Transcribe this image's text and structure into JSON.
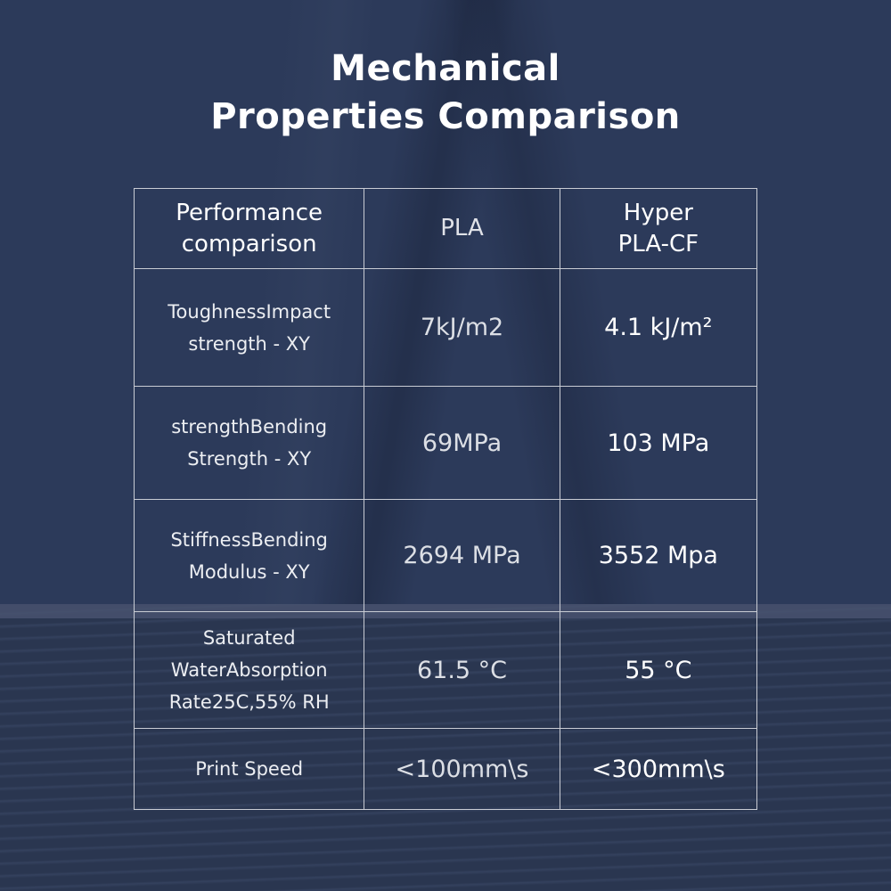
{
  "title": {
    "line1": "Mechanical",
    "line2": "Properties Comparison"
  },
  "table": {
    "headers": [
      "Performance comparison",
      "PLA",
      "Hyper PLA-CF"
    ],
    "header_lines": [
      [
        "Performance",
        "comparison"
      ],
      [
        "PLA"
      ],
      [
        "Hyper",
        "PLA-CF"
      ]
    ],
    "rows": [
      {
        "label": [
          "ToughnessImpact",
          "strength - XY"
        ],
        "pla": "7kJ/m2",
        "hyper": "4.1 kJ/m²"
      },
      {
        "label": [
          "strengthBending",
          "Strength - XY"
        ],
        "pla": "69MPa",
        "hyper": "103 MPa"
      },
      {
        "label": [
          "StiffnessBending",
          "Modulus - XY"
        ],
        "pla": "2694 MPa",
        "hyper": "3552 Mpa"
      },
      {
        "label": [
          "Saturated",
          "WaterAbsorption",
          "Rate25C,55% RH"
        ],
        "pla": "61.5 °C",
        "hyper": "55 °C"
      },
      {
        "label": [
          "Print Speed"
        ],
        "pla": "<100mm\\s",
        "hyper": "<300mm\\s"
      }
    ]
  },
  "colors": {
    "background": "#2c3a5a",
    "border": "#c9ccd4",
    "text": "#ffffff"
  }
}
